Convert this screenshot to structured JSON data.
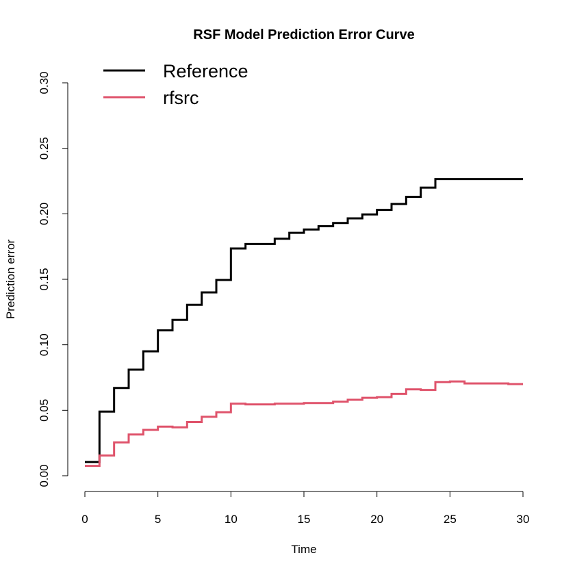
{
  "chart_data": {
    "type": "line",
    "step": true,
    "title": "RSF Model Prediction Error Curve",
    "xlabel": "Time",
    "ylabel": "Prediction error",
    "xlim": [
      0,
      30
    ],
    "ylim": [
      0,
      0.3
    ],
    "x_ticks": [
      0,
      5,
      10,
      15,
      20,
      25,
      30
    ],
    "x_tick_labels": [
      "0",
      "5",
      "10",
      "15",
      "20",
      "25",
      "30"
    ],
    "y_ticks": [
      0,
      0.05,
      0.1,
      0.15,
      0.2,
      0.25,
      0.3
    ],
    "y_tick_labels": [
      "0.00",
      "0.05",
      "0.10",
      "0.15",
      "0.20",
      "0.25",
      "0.30"
    ],
    "grid": false,
    "legend_position": "top-left",
    "series": [
      {
        "name": "Reference",
        "color": "#000000",
        "x": [
          0,
          1,
          2,
          3,
          4,
          5,
          6,
          7,
          8,
          9,
          10,
          11,
          12,
          13,
          14,
          15,
          16,
          17,
          18,
          19,
          20,
          21,
          22,
          23,
          24,
          25,
          26,
          27,
          28,
          29,
          30
        ],
        "y": [
          0.0105,
          0.049,
          0.067,
          0.081,
          0.095,
          0.111,
          0.119,
          0.1305,
          0.14,
          0.1495,
          0.1735,
          0.177,
          0.177,
          0.181,
          0.1855,
          0.188,
          0.1905,
          0.193,
          0.1965,
          0.1995,
          0.203,
          0.2075,
          0.213,
          0.22,
          0.2265,
          0.2265,
          0.2265,
          0.2265,
          0.2265,
          0.2265,
          0.2265
        ]
      },
      {
        "name": "rfsrc",
        "color": "#df536b",
        "x": [
          0,
          1,
          2,
          3,
          4,
          5,
          6,
          7,
          8,
          9,
          10,
          11,
          12,
          13,
          14,
          15,
          16,
          17,
          18,
          19,
          20,
          21,
          22,
          23,
          24,
          25,
          26,
          27,
          28,
          29,
          30
        ],
        "y": [
          0.0075,
          0.0155,
          0.0255,
          0.0315,
          0.035,
          0.0375,
          0.037,
          0.041,
          0.045,
          0.0485,
          0.055,
          0.0545,
          0.0545,
          0.055,
          0.055,
          0.0555,
          0.0555,
          0.0565,
          0.058,
          0.0595,
          0.06,
          0.0625,
          0.066,
          0.0655,
          0.0715,
          0.072,
          0.0705,
          0.0705,
          0.0705,
          0.07,
          0.07
        ]
      }
    ]
  }
}
